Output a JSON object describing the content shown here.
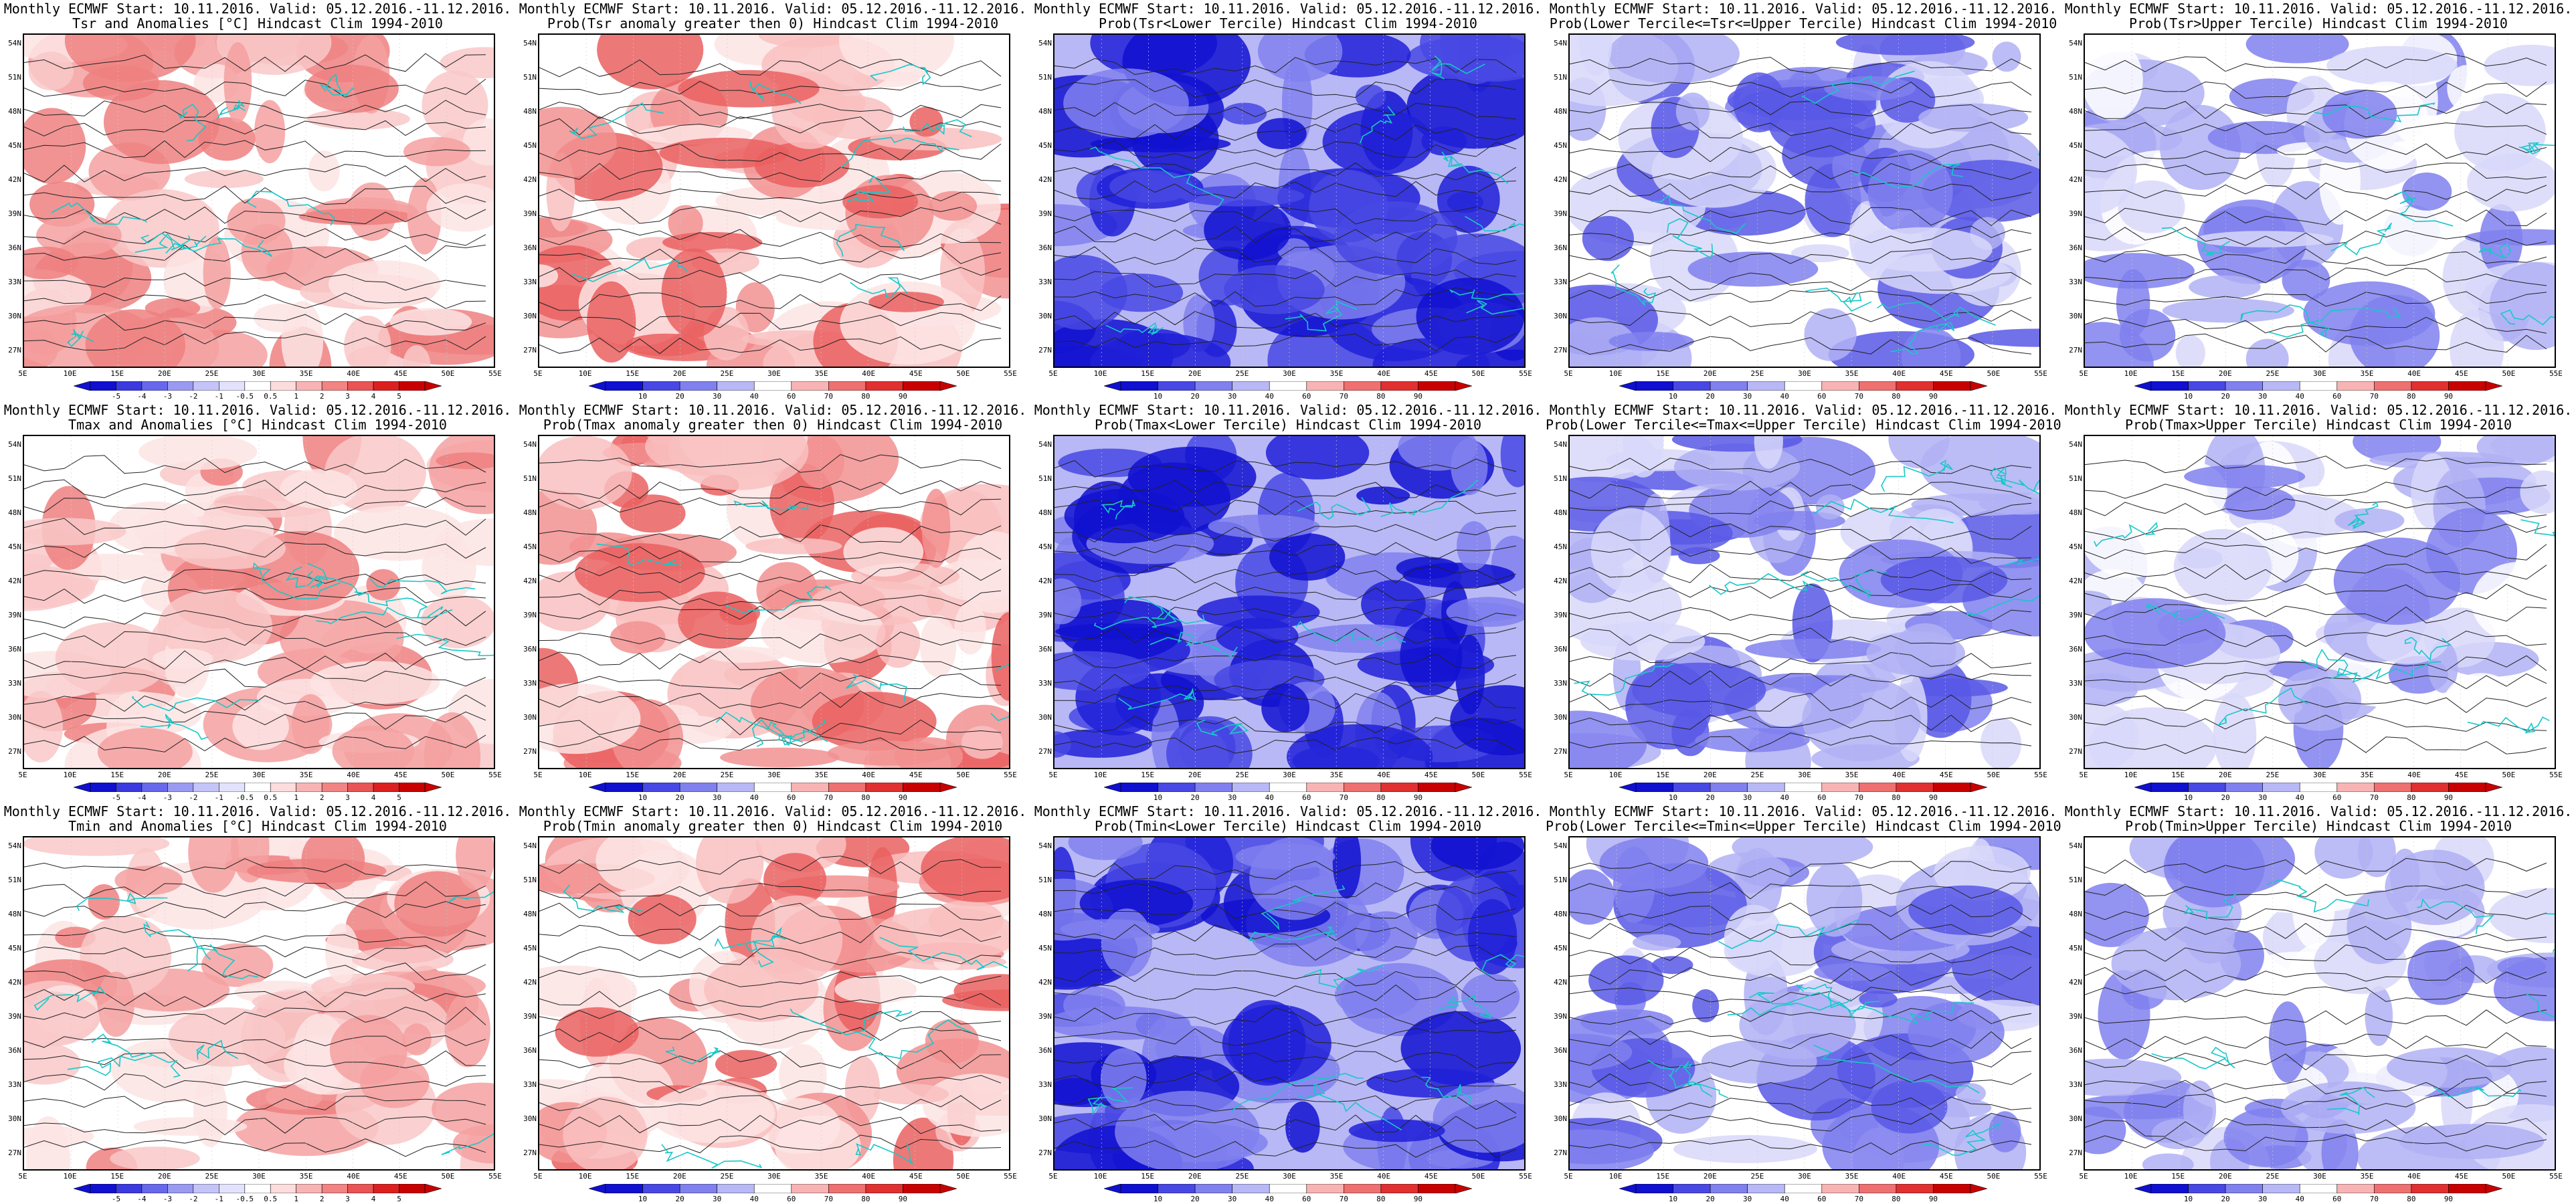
{
  "figure": {
    "rows": [
      {
        "variable": "Tsr",
        "panels": [
          {
            "title1": "Monthly ECMWF Start: 10.11.2016. Valid: 05.12.2016.-11.12.2016.",
            "title2": "Tsr and Anomalies [°C] Hindcast Clim 1994-2010",
            "kind": "anom"
          },
          {
            "title1": "Monthly ECMWF Start: 10.11.2016. Valid: 05.12.2016.-11.12.2016.",
            "title2": "Prob(Tsr anomaly greater then 0) Hindcast Clim 1994-2010",
            "kind": "prob-warm"
          },
          {
            "title1": "Monthly ECMWF Start: 10.11.2016. Valid: 05.12.2016.-11.12.2016.",
            "title2": "Prob(Tsr<Lower Tercile) Hindcast Clim 1994-2010",
            "kind": "lower"
          },
          {
            "title1": "Monthly ECMWF Start: 10.11.2016. Valid: 05.12.2016.-11.12.2016.",
            "title2": "Prob(Lower Tercile<=Tsr<=Upper Tercile) Hindcast Clim 1994-2010",
            "kind": "middle"
          },
          {
            "title1": "Monthly ECMWF Start: 10.11.2016. Valid: 05.12.2016.-11.12.2016.",
            "title2": "Prob(Tsr>Upper Tercile) Hindcast Clim 1994-2010",
            "kind": "upper"
          }
        ]
      },
      {
        "variable": "Tmax",
        "panels": [
          {
            "title1": "Monthly ECMWF Start: 10.11.2016. Valid: 05.12.2016.-11.12.2016.",
            "title2": "Tmax and Anomalies [°C] Hindcast Clim 1994-2010",
            "kind": "anom"
          },
          {
            "title1": "Monthly ECMWF Start: 10.11.2016. Valid: 05.12.2016.-11.12.2016.",
            "title2": "Prob(Tmax anomaly greater then 0) Hindcast Clim 1994-2010",
            "kind": "prob-warm"
          },
          {
            "title1": "Monthly ECMWF Start: 10.11.2016. Valid: 05.12.2016.-11.12.2016.",
            "title2": "Prob(Tmax<Lower Tercile) Hindcast Clim 1994-2010",
            "kind": "lower"
          },
          {
            "title1": "Monthly ECMWF Start: 10.11.2016. Valid: 05.12.2016.-11.12.2016.",
            "title2": "Prob(Lower Tercile<=Tmax<=Upper Tercile) Hindcast Clim 1994-2010",
            "kind": "middle"
          },
          {
            "title1": "Monthly ECMWF Start: 10.11.2016. Valid: 05.12.2016.-11.12.2016.",
            "title2": "Prob(Tmax>Upper Tercile) Hindcast Clim 1994-2010",
            "kind": "upper"
          }
        ]
      },
      {
        "variable": "Tmin",
        "panels": [
          {
            "title1": "Monthly ECMWF Start: 10.11.2016. Valid: 05.12.2016.-11.12.2016.",
            "title2": "Tmin and Anomalies [°C] Hindcast Clim 1994-2010",
            "kind": "anom"
          },
          {
            "title1": "Monthly ECMWF Start: 10.11.2016. Valid: 05.12.2016.-11.12.2016.",
            "title2": "Prob(Tmin anomaly greater then 0) Hindcast Clim 1994-2010",
            "kind": "prob-warm"
          },
          {
            "title1": "Monthly ECMWF Start: 10.11.2016. Valid: 05.12.2016.-11.12.2016.",
            "title2": "Prob(Tmin<Lower Tercile) Hindcast Clim 1994-2010",
            "kind": "lower"
          },
          {
            "title1": "Monthly ECMWF Start: 10.11.2016. Valid: 05.12.2016.-11.12.2016.",
            "title2": "Prob(Lower Tercile<=Tmin<=Upper Tercile) Hindcast Clim 1994-2010",
            "kind": "middle"
          },
          {
            "title1": "Monthly ECMWF Start: 10.11.2016. Valid: 05.12.2016.-11.12.2016.",
            "title2": "Prob(Tmin>Upper Tercile) Hindcast Clim 1994-2010",
            "kind": "upper"
          }
        ]
      }
    ],
    "lat_labels": [
      "54N",
      "51N",
      "48N",
      "45N",
      "42N",
      "39N",
      "36N",
      "33N",
      "30N",
      "27N"
    ],
    "lon_labels": [
      "5E",
      "10E",
      "15E",
      "20E",
      "25E",
      "30E",
      "35E",
      "40E",
      "45E",
      "50E",
      "55E"
    ],
    "anom_colorbar": {
      "labels": [
        "-5",
        "-4",
        "-3",
        "-2",
        "-1",
        "-0.5",
        "0.5",
        "1",
        "2",
        "3",
        "4",
        "5"
      ],
      "colors": [
        "#1010d0",
        "#3a3ae0",
        "#6868ec",
        "#9a9af2",
        "#c4c4f8",
        "#e2e2fc",
        "#ffffff",
        "#fcdcdc",
        "#f8b4b4",
        "#f28484",
        "#ea5454",
        "#dc2020",
        "#c80000"
      ]
    },
    "prob_colorbar": {
      "labels": [
        "10",
        "20",
        "30",
        "40",
        "60",
        "70",
        "80",
        "90"
      ],
      "colors": [
        "#1010d0",
        "#4848e4",
        "#8080ee",
        "#b8b8f6",
        "#ffffff",
        "#f8b4b4",
        "#ee7070",
        "#e03030",
        "#c80000"
      ]
    }
  }
}
